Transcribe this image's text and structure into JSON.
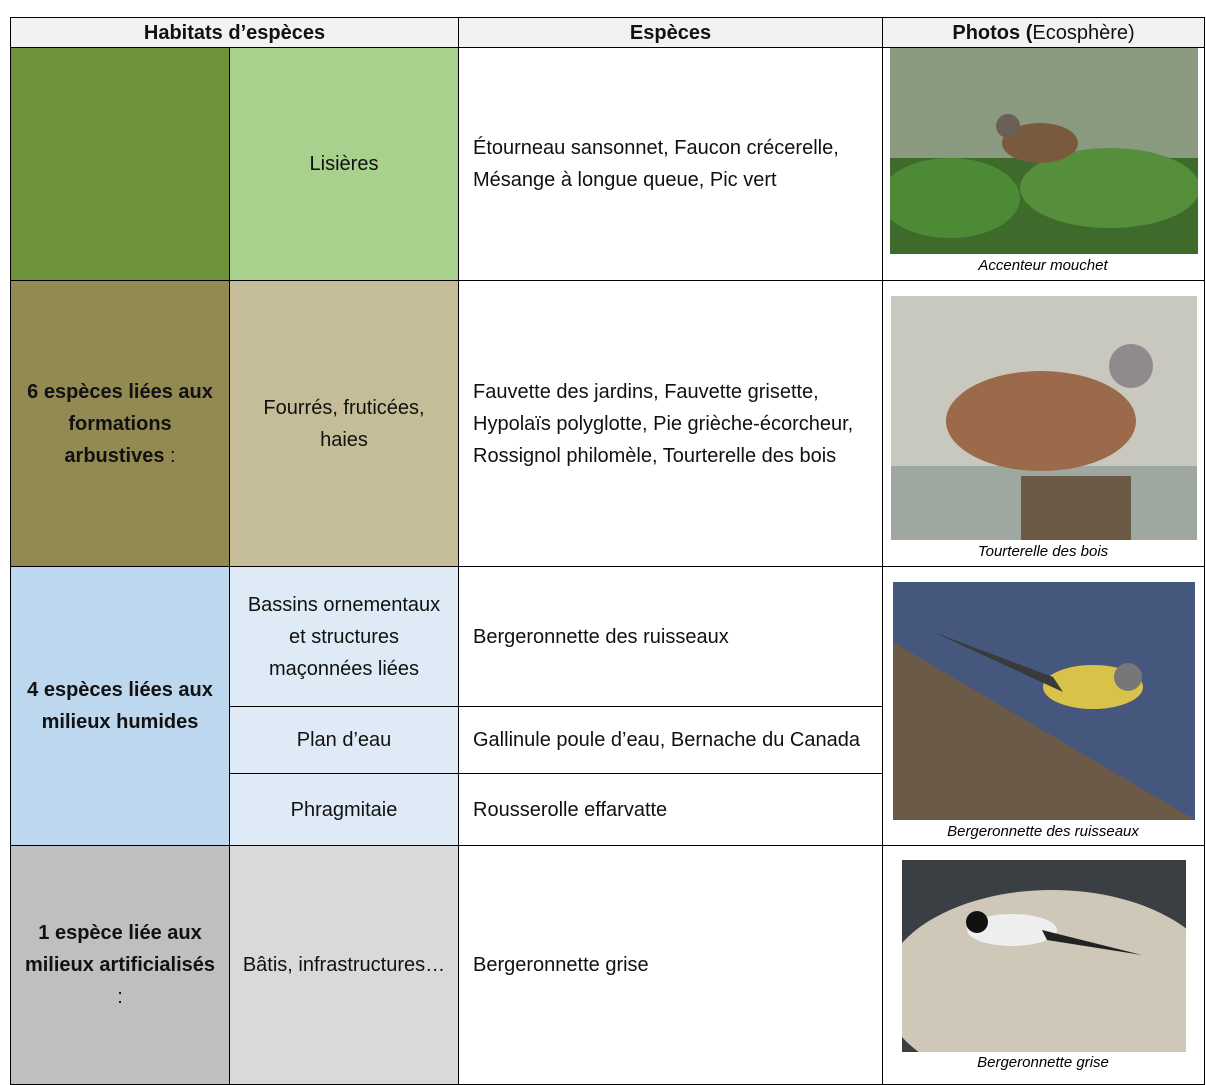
{
  "header": {
    "habitats": "Habitats d’espèces",
    "species": "Espèces",
    "photos_bold": "Photos (",
    "photos_rest": "Ecosphère)"
  },
  "rows": [
    {
      "habitats": [
        {
          "habitat": "Lisières",
          "species": "Étourneau sansonnet, Faucon crécerelle, Mésange à longue queue, Pic vert"
        }
      ],
      "caption": "Accenteur mouchet"
    },
    {
      "group": "6 espèces liées aux formations arbustives",
      "group_suffix": " :",
      "habitats": [
        {
          "habitat": "Fourrés, fruticées, haies",
          "species": "Fauvette des jardins, Fauvette grisette, Hypolaïs polyglotte, Pie grièche-écorcheur, Rossignol philomèle, Tourterelle des bois"
        }
      ],
      "caption": "Tourterelle des bois"
    },
    {
      "group": "4 espèces liées aux milieux humides",
      "habitats": [
        {
          "habitat": "Bassins ornementaux et structures maçonnées liées",
          "species": "Bergeronnette des ruisseaux"
        },
        {
          "habitat": "Plan d’eau",
          "species": "Gallinule poule d’eau, Bernache du Canada"
        },
        {
          "habitat": "Phragmitaie",
          "species": "Rousserolle effarvatte"
        }
      ],
      "caption": "Bergeronnette des ruisseaux"
    },
    {
      "group": "1 espèce liée aux milieux artificialisés",
      "group_suffix": " :",
      "habitats": [
        {
          "habitat": "Bâtis, infrastructures…",
          "species": "Bergeronnette grise"
        }
      ],
      "caption": "Bergeronnette grise"
    }
  ]
}
